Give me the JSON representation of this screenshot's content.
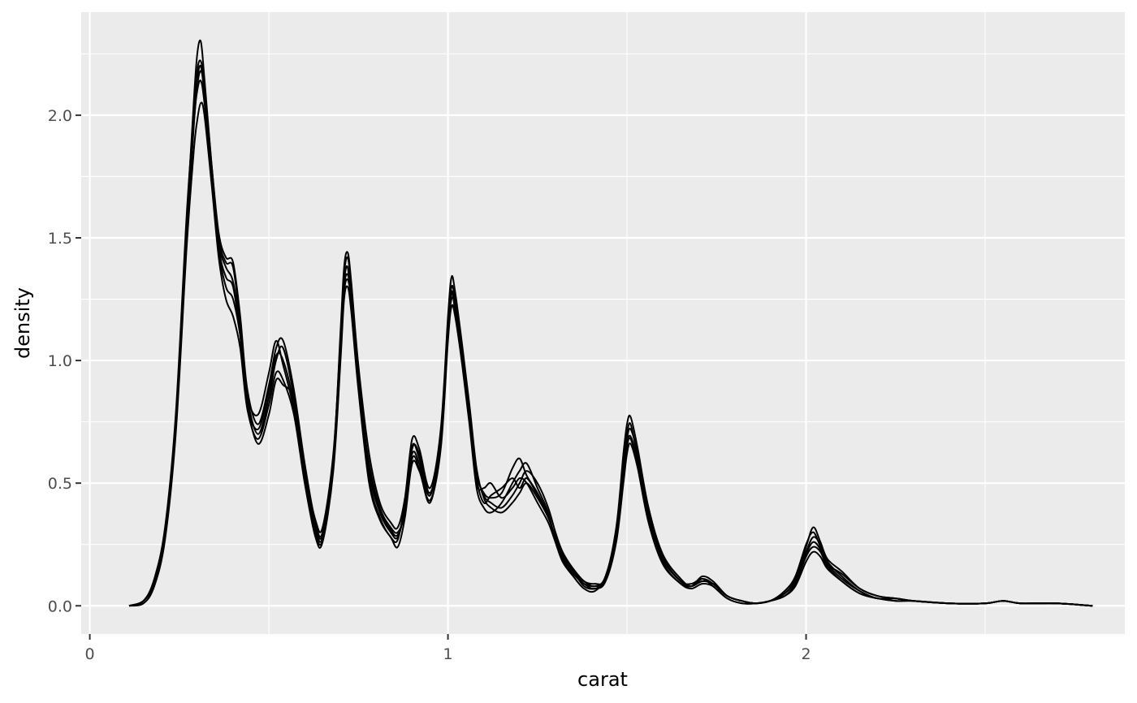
{
  "chart_data": {
    "type": "line",
    "title": "",
    "xlabel": "carat",
    "ylabel": "density",
    "xlim": [
      -0.024,
      2.89
    ],
    "ylim": [
      -0.115,
      2.42
    ],
    "x_ticks": [
      0,
      1,
      2
    ],
    "x_tick_labels": [
      "0",
      "1",
      "2"
    ],
    "y_ticks": [
      0,
      0.5,
      1,
      1.5,
      2
    ],
    "y_tick_labels": [
      "0.0",
      "0.5",
      "1.0",
      "1.5",
      "2.0"
    ],
    "grid": true,
    "panel_background": "#EBEBEB",
    "grid_color": "#FFFFFF",
    "line_color": "#000000",
    "legend": "none",
    "x": [
      0.11,
      0.15,
      0.18,
      0.21,
      0.24,
      0.27,
      0.29,
      0.3,
      0.31,
      0.32,
      0.34,
      0.36,
      0.38,
      0.4,
      0.42,
      0.44,
      0.47,
      0.5,
      0.52,
      0.54,
      0.57,
      0.6,
      0.63,
      0.65,
      0.68,
      0.7,
      0.71,
      0.72,
      0.73,
      0.75,
      0.78,
      0.81,
      0.84,
      0.86,
      0.88,
      0.9,
      0.92,
      0.95,
      0.98,
      1.0,
      1.01,
      1.02,
      1.04,
      1.06,
      1.08,
      1.1,
      1.12,
      1.15,
      1.18,
      1.2,
      1.22,
      1.25,
      1.28,
      1.3,
      1.32,
      1.35,
      1.38,
      1.41,
      1.44,
      1.47,
      1.49,
      1.5,
      1.51,
      1.53,
      1.56,
      1.6,
      1.65,
      1.68,
      1.71,
      1.74,
      1.78,
      1.82,
      1.86,
      1.9,
      1.94,
      1.97,
      2.0,
      2.02,
      2.04,
      2.06,
      2.1,
      2.15,
      2.2,
      2.25,
      2.3,
      2.4,
      2.5,
      2.55,
      2.6,
      2.7,
      2.8
    ],
    "series": [
      {
        "values": [
          0.0,
          0.02,
          0.1,
          0.3,
          0.75,
          1.55,
          2.05,
          2.25,
          2.3,
          2.15,
          1.8,
          1.5,
          1.4,
          1.38,
          1.15,
          0.85,
          0.7,
          0.85,
          1.0,
          1.05,
          0.85,
          0.55,
          0.32,
          0.28,
          0.6,
          1.1,
          1.35,
          1.42,
          1.3,
          0.95,
          0.55,
          0.38,
          0.3,
          0.28,
          0.4,
          0.65,
          0.6,
          0.45,
          0.7,
          1.15,
          1.3,
          1.25,
          1.05,
          0.8,
          0.55,
          0.45,
          0.42,
          0.4,
          0.45,
          0.5,
          0.55,
          0.5,
          0.4,
          0.3,
          0.22,
          0.15,
          0.1,
          0.09,
          0.11,
          0.3,
          0.55,
          0.68,
          0.72,
          0.62,
          0.4,
          0.2,
          0.1,
          0.08,
          0.12,
          0.1,
          0.04,
          0.02,
          0.01,
          0.02,
          0.05,
          0.1,
          0.22,
          0.28,
          0.25,
          0.18,
          0.12,
          0.06,
          0.03,
          0.03,
          0.02,
          0.01,
          0.01,
          0.02,
          0.01,
          0.01,
          0.0
        ]
      },
      {
        "values": [
          0.0,
          0.02,
          0.09,
          0.28,
          0.72,
          1.5,
          1.95,
          2.12,
          2.18,
          2.1,
          1.78,
          1.48,
          1.38,
          1.32,
          1.12,
          0.82,
          0.72,
          0.88,
          1.02,
          1.0,
          0.82,
          0.52,
          0.3,
          0.27,
          0.58,
          1.05,
          1.3,
          1.35,
          1.25,
          0.92,
          0.52,
          0.36,
          0.28,
          0.27,
          0.42,
          0.62,
          0.58,
          0.45,
          0.68,
          1.12,
          1.25,
          1.22,
          1.02,
          0.78,
          0.52,
          0.42,
          0.45,
          0.48,
          0.52,
          0.48,
          0.52,
          0.45,
          0.36,
          0.28,
          0.2,
          0.14,
          0.08,
          0.07,
          0.1,
          0.28,
          0.52,
          0.65,
          0.68,
          0.58,
          0.38,
          0.18,
          0.09,
          0.08,
          0.1,
          0.09,
          0.04,
          0.02,
          0.01,
          0.02,
          0.04,
          0.09,
          0.2,
          0.24,
          0.22,
          0.16,
          0.1,
          0.05,
          0.03,
          0.02,
          0.02,
          0.01,
          0.01,
          0.02,
          0.01,
          0.01,
          0.0
        ]
      },
      {
        "values": [
          0.0,
          0.02,
          0.11,
          0.32,
          0.78,
          1.58,
          2.0,
          2.15,
          2.2,
          2.08,
          1.75,
          1.45,
          1.3,
          1.25,
          1.1,
          0.85,
          0.78,
          0.95,
          1.08,
          0.98,
          0.8,
          0.55,
          0.35,
          0.32,
          0.62,
          1.08,
          1.32,
          1.38,
          1.22,
          0.9,
          0.58,
          0.4,
          0.32,
          0.3,
          0.38,
          0.6,
          0.56,
          0.42,
          0.66,
          1.1,
          1.28,
          1.2,
          1.0,
          0.76,
          0.5,
          0.48,
          0.5,
          0.44,
          0.48,
          0.52,
          0.5,
          0.42,
          0.34,
          0.26,
          0.18,
          0.12,
          0.07,
          0.06,
          0.12,
          0.3,
          0.58,
          0.7,
          0.74,
          0.6,
          0.36,
          0.19,
          0.1,
          0.09,
          0.11,
          0.08,
          0.03,
          0.01,
          0.01,
          0.02,
          0.06,
          0.12,
          0.25,
          0.3,
          0.24,
          0.17,
          0.13,
          0.07,
          0.04,
          0.03,
          0.02,
          0.01,
          0.01,
          0.02,
          0.01,
          0.01,
          0.0
        ]
      },
      {
        "values": [
          0.0,
          0.01,
          0.08,
          0.27,
          0.7,
          1.45,
          1.85,
          1.98,
          2.05,
          2.0,
          1.72,
          1.42,
          1.25,
          1.18,
          1.05,
          0.8,
          0.68,
          0.82,
          0.95,
          0.92,
          0.78,
          0.5,
          0.28,
          0.26,
          0.55,
          1.0,
          1.25,
          1.3,
          1.2,
          0.88,
          0.5,
          0.35,
          0.28,
          0.24,
          0.36,
          0.58,
          0.55,
          0.43,
          0.64,
          1.08,
          1.22,
          1.18,
          0.98,
          0.74,
          0.48,
          0.4,
          0.38,
          0.42,
          0.5,
          0.55,
          0.58,
          0.48,
          0.38,
          0.26,
          0.19,
          0.13,
          0.09,
          0.08,
          0.1,
          0.26,
          0.5,
          0.62,
          0.66,
          0.56,
          0.34,
          0.17,
          0.09,
          0.07,
          0.09,
          0.08,
          0.03,
          0.01,
          0.01,
          0.02,
          0.04,
          0.08,
          0.18,
          0.22,
          0.2,
          0.15,
          0.1,
          0.05,
          0.03,
          0.02,
          0.02,
          0.01,
          0.01,
          0.02,
          0.01,
          0.01,
          0.0
        ]
      },
      {
        "values": [
          0.0,
          0.02,
          0.1,
          0.31,
          0.76,
          1.53,
          1.98,
          2.18,
          2.22,
          2.12,
          1.8,
          1.52,
          1.42,
          1.4,
          1.18,
          0.88,
          0.74,
          0.9,
          1.05,
          1.08,
          0.88,
          0.58,
          0.34,
          0.3,
          0.6,
          1.12,
          1.38,
          1.44,
          1.32,
          0.98,
          0.62,
          0.42,
          0.34,
          0.32,
          0.44,
          0.68,
          0.64,
          0.48,
          0.72,
          1.18,
          1.34,
          1.28,
          1.06,
          0.82,
          0.56,
          0.44,
          0.4,
          0.38,
          0.42,
          0.46,
          0.5,
          0.44,
          0.36,
          0.28,
          0.21,
          0.15,
          0.1,
          0.08,
          0.12,
          0.32,
          0.62,
          0.74,
          0.77,
          0.64,
          0.4,
          0.21,
          0.11,
          0.08,
          0.11,
          0.09,
          0.04,
          0.02,
          0.01,
          0.02,
          0.05,
          0.11,
          0.24,
          0.32,
          0.26,
          0.19,
          0.14,
          0.07,
          0.04,
          0.03,
          0.02,
          0.01,
          0.01,
          0.02,
          0.01,
          0.01,
          0.0
        ]
      },
      {
        "values": [
          0.0,
          0.02,
          0.1,
          0.29,
          0.74,
          1.52,
          1.96,
          2.1,
          2.14,
          2.05,
          1.76,
          1.46,
          1.34,
          1.3,
          1.1,
          0.82,
          0.66,
          0.78,
          0.92,
          0.9,
          0.84,
          0.56,
          0.33,
          0.29,
          0.57,
          1.06,
          1.28,
          1.33,
          1.24,
          0.94,
          0.56,
          0.39,
          0.31,
          0.29,
          0.4,
          0.64,
          0.62,
          0.46,
          0.69,
          1.14,
          1.27,
          1.24,
          1.04,
          0.79,
          0.54,
          0.46,
          0.44,
          0.46,
          0.56,
          0.6,
          0.53,
          0.46,
          0.37,
          0.27,
          0.2,
          0.14,
          0.09,
          0.07,
          0.11,
          0.29,
          0.54,
          0.66,
          0.69,
          0.59,
          0.37,
          0.19,
          0.1,
          0.08,
          0.1,
          0.09,
          0.04,
          0.02,
          0.01,
          0.02,
          0.05,
          0.1,
          0.21,
          0.26,
          0.23,
          0.17,
          0.11,
          0.06,
          0.03,
          0.03,
          0.02,
          0.01,
          0.01,
          0.02,
          0.01,
          0.01,
          0.0
        ]
      }
    ]
  }
}
